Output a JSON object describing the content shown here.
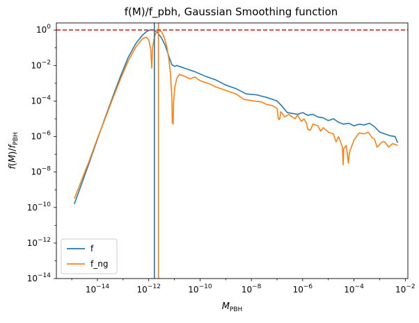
{
  "chart_data": {
    "type": "line",
    "title": "f(M)/f_pbh, Gaussian Smoothing function",
    "xlabel": "M_PBH",
    "ylabel": "f(M)/f_PBH",
    "xscale": "log",
    "yscale": "log",
    "xlim_log10": [
      -15.6,
      -1.9
    ],
    "ylim_log10": [
      -14,
      0.4
    ],
    "x_ticks": [
      {
        "exp": -14,
        "label": "10^-14"
      },
      {
        "exp": -12,
        "label": "10^-12"
      },
      {
        "exp": -10,
        "label": "10^-10"
      },
      {
        "exp": -8,
        "label": "10^-8"
      },
      {
        "exp": -6,
        "label": "10^-6"
      },
      {
        "exp": -4,
        "label": "10^-4"
      },
      {
        "exp": -2,
        "label": "10^-2"
      }
    ],
    "y_ticks": [
      {
        "exp": 0,
        "label": "10^0"
      },
      {
        "exp": -2,
        "label": "10^-2"
      },
      {
        "exp": -4,
        "label": "10^-4"
      },
      {
        "exp": -6,
        "label": "10^-6"
      },
      {
        "exp": -8,
        "label": "10^-8"
      },
      {
        "exp": -10,
        "label": "10^-10"
      },
      {
        "exp": -12,
        "label": "10^-12"
      },
      {
        "exp": -14,
        "label": "10^-14"
      }
    ],
    "hline": {
      "y_log10": 0,
      "color": "#d62728",
      "style": "dashed"
    },
    "vlines": [
      {
        "x_log10": -11.78,
        "color": "#1f77b4"
      },
      {
        "x_log10": -11.62,
        "color": "#ff7f0e"
      }
    ],
    "legend": {
      "position": "lower-left"
    },
    "series": [
      {
        "name": "f",
        "color": "#1f77b4",
        "points_log10": [
          [
            -14.9,
            -9.8
          ],
          [
            -14.6,
            -8.6
          ],
          [
            -14.3,
            -7.4
          ],
          [
            -14.0,
            -6.15
          ],
          [
            -13.7,
            -4.95
          ],
          [
            -13.4,
            -3.75
          ],
          [
            -13.1,
            -2.6
          ],
          [
            -12.8,
            -1.55
          ],
          [
            -12.5,
            -0.75
          ],
          [
            -12.25,
            -0.3
          ],
          [
            -12.1,
            -0.1
          ],
          [
            -11.95,
            0.0
          ],
          [
            -11.8,
            0.0
          ],
          [
            -11.65,
            -0.15
          ],
          [
            -11.5,
            -0.45
          ],
          [
            -11.35,
            -0.9
          ],
          [
            -11.2,
            -1.55
          ],
          [
            -11.1,
            -1.95
          ],
          [
            -11.0,
            -2.05
          ],
          [
            -10.9,
            -2.0
          ],
          [
            -10.6,
            -2.15
          ],
          [
            -10.2,
            -2.35
          ],
          [
            -9.8,
            -2.6
          ],
          [
            -9.4,
            -2.8
          ],
          [
            -9.0,
            -3.1
          ],
          [
            -8.6,
            -3.3
          ],
          [
            -8.2,
            -3.6
          ],
          [
            -7.8,
            -3.65
          ],
          [
            -7.4,
            -3.8
          ],
          [
            -7.0,
            -4.0
          ],
          [
            -6.8,
            -4.3
          ],
          [
            -6.6,
            -4.65
          ],
          [
            -6.4,
            -4.7
          ],
          [
            -6.2,
            -4.75
          ],
          [
            -6.0,
            -4.65
          ],
          [
            -5.8,
            -4.8
          ],
          [
            -5.6,
            -4.75
          ],
          [
            -5.4,
            -4.9
          ],
          [
            -5.2,
            -4.95
          ],
          [
            -5.0,
            -5.1
          ],
          [
            -4.8,
            -5.0
          ],
          [
            -4.6,
            -5.2
          ],
          [
            -4.4,
            -5.3
          ],
          [
            -4.2,
            -5.25
          ],
          [
            -4.0,
            -5.4
          ],
          [
            -3.8,
            -5.3
          ],
          [
            -3.6,
            -5.35
          ],
          [
            -3.4,
            -5.25
          ],
          [
            -3.2,
            -5.45
          ],
          [
            -3.0,
            -5.75
          ],
          [
            -2.8,
            -5.85
          ],
          [
            -2.6,
            -5.95
          ],
          [
            -2.4,
            -6.0
          ],
          [
            -2.3,
            -6.35
          ]
        ]
      },
      {
        "name": "f_ng",
        "color": "#ff7f0e",
        "points_log10": [
          [
            -14.9,
            -9.5
          ],
          [
            -14.6,
            -8.4
          ],
          [
            -14.3,
            -7.3
          ],
          [
            -14.0,
            -6.1
          ],
          [
            -13.7,
            -5.0
          ],
          [
            -13.4,
            -3.85
          ],
          [
            -13.1,
            -2.75
          ],
          [
            -12.8,
            -1.75
          ],
          [
            -12.5,
            -0.95
          ],
          [
            -12.25,
            -0.5
          ],
          [
            -12.1,
            -0.4
          ],
          [
            -12.0,
            -0.55
          ],
          [
            -11.92,
            -1.1
          ],
          [
            -11.88,
            -2.15
          ],
          [
            -11.85,
            -1.0
          ],
          [
            -11.78,
            -0.4
          ],
          [
            -11.7,
            -0.1
          ],
          [
            -11.6,
            0.0
          ],
          [
            -11.5,
            -0.1
          ],
          [
            -11.4,
            -0.4
          ],
          [
            -11.3,
            -0.9
          ],
          [
            -11.22,
            -1.6
          ],
          [
            -11.15,
            -2.5
          ],
          [
            -11.1,
            -3.8
          ],
          [
            -11.08,
            -5.2
          ],
          [
            -11.05,
            -5.3
          ],
          [
            -11.03,
            -4.0
          ],
          [
            -10.98,
            -3.2
          ],
          [
            -10.9,
            -2.7
          ],
          [
            -10.8,
            -2.5
          ],
          [
            -10.6,
            -2.6
          ],
          [
            -10.4,
            -2.75
          ],
          [
            -10.2,
            -2.65
          ],
          [
            -10.0,
            -2.85
          ],
          [
            -9.8,
            -2.95
          ],
          [
            -9.6,
            -3.05
          ],
          [
            -9.4,
            -3.2
          ],
          [
            -9.0,
            -3.4
          ],
          [
            -8.6,
            -3.6
          ],
          [
            -8.3,
            -3.9
          ],
          [
            -8.1,
            -3.95
          ],
          [
            -7.9,
            -4.0
          ],
          [
            -7.6,
            -4.05
          ],
          [
            -7.4,
            -4.2
          ],
          [
            -7.2,
            -4.25
          ],
          [
            -7.0,
            -4.4
          ],
          [
            -6.95,
            -5.0
          ],
          [
            -6.9,
            -5.05
          ],
          [
            -6.85,
            -4.6
          ],
          [
            -6.7,
            -4.9
          ],
          [
            -6.55,
            -4.75
          ],
          [
            -6.45,
            -4.85
          ],
          [
            -6.3,
            -5.0
          ],
          [
            -6.2,
            -4.8
          ],
          [
            -6.05,
            -5.15
          ],
          [
            -5.95,
            -5.0
          ],
          [
            -5.85,
            -5.25
          ],
          [
            -5.8,
            -5.6
          ],
          [
            -5.7,
            -5.65
          ],
          [
            -5.6,
            -5.3
          ],
          [
            -5.5,
            -5.35
          ],
          [
            -5.4,
            -5.4
          ],
          [
            -5.3,
            -5.7
          ],
          [
            -5.2,
            -5.5
          ],
          [
            -5.0,
            -5.75
          ],
          [
            -4.8,
            -5.85
          ],
          [
            -4.7,
            -6.3
          ],
          [
            -4.6,
            -6.0
          ],
          [
            -4.45,
            -6.6
          ],
          [
            -4.42,
            -7.6
          ],
          [
            -4.4,
            -6.7
          ],
          [
            -4.3,
            -6.5
          ],
          [
            -4.22,
            -7.5
          ],
          [
            -4.18,
            -6.9
          ],
          [
            -4.0,
            -6.2
          ],
          [
            -3.8,
            -5.8
          ],
          [
            -3.6,
            -5.85
          ],
          [
            -3.45,
            -5.75
          ],
          [
            -3.3,
            -6.05
          ],
          [
            -3.2,
            -6.15
          ],
          [
            -3.1,
            -6.6
          ],
          [
            -2.9,
            -6.3
          ],
          [
            -2.8,
            -6.3
          ],
          [
            -2.65,
            -6.6
          ],
          [
            -2.5,
            -6.4
          ],
          [
            -2.3,
            -6.5
          ]
        ]
      }
    ]
  }
}
